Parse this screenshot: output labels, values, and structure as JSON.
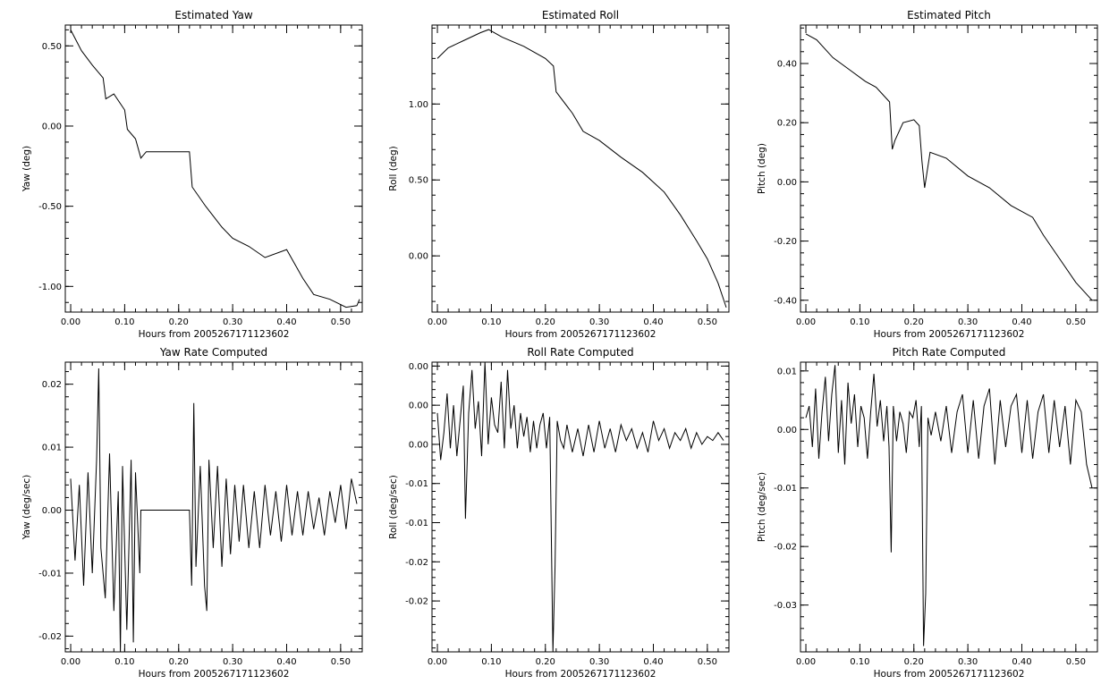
{
  "colors": {
    "background": "#ffffff",
    "ink": "#000000"
  },
  "chart_data": [
    {
      "id": "yaw",
      "type": "line",
      "title": "Estimated Yaw",
      "xlabel": "Hours from 2005267171123602",
      "ylabel": "Yaw (deg)",
      "xlim": [
        -0.01,
        0.54
      ],
      "ylim": [
        -1.16,
        0.63
      ],
      "xticks": [
        0.0,
        0.1,
        0.2,
        0.3,
        0.4,
        0.5
      ],
      "xtick_labels": [
        "0.00",
        "0.10",
        "0.20",
        "0.30",
        "0.40",
        "0.50"
      ],
      "yticks": [
        0.5,
        0.0,
        -0.5,
        -1.0
      ],
      "ytick_labels": [
        "0.50",
        "0.00",
        "-0.50",
        "-1.00"
      ],
      "grid": false,
      "legend": "none",
      "series": [
        {
          "x": [
            0.0,
            0.02,
            0.04,
            0.06,
            0.065,
            0.08,
            0.1,
            0.105,
            0.12,
            0.13,
            0.14,
            0.22,
            0.225,
            0.25,
            0.28,
            0.3,
            0.33,
            0.36,
            0.4,
            0.43,
            0.45,
            0.48,
            0.51,
            0.53,
            0.535
          ],
          "y": [
            0.6,
            0.47,
            0.38,
            0.3,
            0.17,
            0.2,
            0.1,
            -0.02,
            -0.08,
            -0.2,
            -0.16,
            -0.16,
            -0.38,
            -0.5,
            -0.63,
            -0.7,
            -0.75,
            -0.82,
            -0.77,
            -0.95,
            -1.05,
            -1.08,
            -1.13,
            -1.12,
            -1.08
          ]
        }
      ]
    },
    {
      "id": "roll",
      "type": "line",
      "title": "Estimated Roll",
      "xlabel": "Hours from 2005267171123602",
      "ylabel": "Roll (deg)",
      "xlim": [
        -0.01,
        0.54
      ],
      "ylim": [
        -0.37,
        1.52
      ],
      "xticks": [
        0.0,
        0.1,
        0.2,
        0.3,
        0.4,
        0.5
      ],
      "xtick_labels": [
        "0.00",
        "0.10",
        "0.20",
        "0.30",
        "0.40",
        "0.50"
      ],
      "yticks": [
        1.0,
        0.5,
        0.0
      ],
      "ytick_labels": [
        "1.00",
        "0.50",
        "0.00"
      ],
      "grid": false,
      "legend": "none",
      "series": [
        {
          "x": [
            0.0,
            0.02,
            0.05,
            0.08,
            0.095,
            0.12,
            0.16,
            0.2,
            0.215,
            0.22,
            0.25,
            0.27,
            0.3,
            0.34,
            0.38,
            0.42,
            0.45,
            0.48,
            0.5,
            0.52,
            0.535
          ],
          "y": [
            1.3,
            1.37,
            1.42,
            1.47,
            1.49,
            1.44,
            1.38,
            1.3,
            1.25,
            1.08,
            0.94,
            0.82,
            0.76,
            0.65,
            0.55,
            0.42,
            0.27,
            0.1,
            -0.02,
            -0.18,
            -0.34
          ]
        }
      ]
    },
    {
      "id": "pitch",
      "type": "line",
      "title": "Estimated Pitch",
      "xlabel": "Hours from 2005267171123602",
      "ylabel": "Pitch (deg)",
      "xlim": [
        -0.01,
        0.54
      ],
      "ylim": [
        -0.44,
        0.53
      ],
      "xticks": [
        0.0,
        0.1,
        0.2,
        0.3,
        0.4,
        0.5
      ],
      "xtick_labels": [
        "0.00",
        "0.10",
        "0.20",
        "0.30",
        "0.40",
        "0.50"
      ],
      "yticks": [
        0.4,
        0.2,
        0.0,
        -0.2,
        -0.4
      ],
      "ytick_labels": [
        "0.40",
        "0.20",
        "0.00",
        "-0.20",
        "-0.40"
      ],
      "grid": false,
      "legend": "none",
      "series": [
        {
          "x": [
            0.0,
            0.02,
            0.05,
            0.08,
            0.11,
            0.13,
            0.155,
            0.16,
            0.165,
            0.18,
            0.2,
            0.21,
            0.215,
            0.22,
            0.23,
            0.26,
            0.3,
            0.34,
            0.38,
            0.42,
            0.43,
            0.44,
            0.47,
            0.5,
            0.53
          ],
          "y": [
            0.5,
            0.48,
            0.42,
            0.38,
            0.34,
            0.32,
            0.27,
            0.11,
            0.14,
            0.2,
            0.21,
            0.19,
            0.07,
            -0.02,
            0.1,
            0.08,
            0.02,
            -0.02,
            -0.08,
            -0.12,
            -0.15,
            -0.18,
            -0.26,
            -0.34,
            -0.4
          ]
        }
      ]
    },
    {
      "id": "yaw-rate",
      "type": "line",
      "title": "Yaw Rate Computed",
      "xlabel": "Hours from 2005267171123602",
      "ylabel": "Yaw (deg/sec)",
      "xlim": [
        -0.01,
        0.54
      ],
      "ylim": [
        -0.0225,
        0.0235
      ],
      "xticks": [
        0.0,
        0.1,
        0.2,
        0.3,
        0.4,
        0.5
      ],
      "xtick_labels": [
        "0.00",
        "0.10",
        "0.20",
        "0.30",
        "0.40",
        "0.50"
      ],
      "yticks": [
        0.02,
        0.01,
        0.0,
        -0.01,
        -0.02
      ],
      "ytick_labels": [
        "0.02",
        "0.01",
        "0.00",
        "-0.01",
        "-0.02"
      ],
      "grid": false,
      "legend": "none",
      "series": [
        {
          "x": [
            0.0,
            0.008,
            0.016,
            0.024,
            0.032,
            0.04,
            0.048,
            0.052,
            0.056,
            0.064,
            0.072,
            0.08,
            0.088,
            0.092,
            0.096,
            0.104,
            0.112,
            0.116,
            0.12,
            0.128,
            0.13,
            0.22,
            0.224,
            0.228,
            0.232,
            0.24,
            0.248,
            0.252,
            0.256,
            0.264,
            0.272,
            0.28,
            0.288,
            0.296,
            0.304,
            0.312,
            0.32,
            0.33,
            0.34,
            0.35,
            0.36,
            0.37,
            0.38,
            0.39,
            0.4,
            0.41,
            0.42,
            0.43,
            0.44,
            0.45,
            0.46,
            0.47,
            0.48,
            0.49,
            0.5,
            0.51,
            0.52,
            0.53
          ],
          "y": [
            0.005,
            -0.008,
            0.004,
            -0.012,
            0.006,
            -0.01,
            0.008,
            0.0225,
            -0.006,
            -0.014,
            0.009,
            -0.016,
            0.003,
            -0.0225,
            0.007,
            -0.019,
            0.008,
            -0.021,
            0.006,
            -0.01,
            0.0,
            0.0,
            -0.012,
            0.017,
            -0.009,
            0.007,
            -0.012,
            -0.016,
            0.008,
            -0.006,
            0.007,
            -0.009,
            0.005,
            -0.007,
            0.004,
            -0.005,
            0.004,
            -0.006,
            0.003,
            -0.006,
            0.004,
            -0.004,
            0.003,
            -0.005,
            0.004,
            -0.004,
            0.003,
            -0.004,
            0.003,
            -0.003,
            0.002,
            -0.004,
            0.003,
            -0.002,
            0.004,
            -0.003,
            0.005,
            0.001
          ]
        }
      ]
    },
    {
      "id": "roll-rate",
      "type": "line",
      "title": "Roll Rate Computed",
      "xlabel": "Hours from 2005267171123602",
      "ylabel": "Roll (deg/sec)",
      "xlim": [
        -0.01,
        0.54
      ],
      "ylim": [
        -0.0265,
        0.0105
      ],
      "xticks": [
        0.0,
        0.1,
        0.2,
        0.3,
        0.4,
        0.5
      ],
      "xtick_labels": [
        "0.00",
        "0.10",
        "0.20",
        "0.30",
        "0.40",
        "0.50"
      ],
      "yticks": [
        0.01,
        0.005,
        0.0,
        -0.005,
        -0.01,
        -0.015,
        -0.02
      ],
      "ytick_labels": [
        "0.00",
        "0.00",
        "0.00",
        "-0.01",
        "-0.01",
        "-0.02",
        "-0.02"
      ],
      "grid": false,
      "legend": "none",
      "series": [
        {
          "x": [
            0.0,
            0.006,
            0.012,
            0.018,
            0.024,
            0.03,
            0.036,
            0.042,
            0.048,
            0.052,
            0.058,
            0.064,
            0.07,
            0.076,
            0.082,
            0.088,
            0.094,
            0.1,
            0.106,
            0.112,
            0.118,
            0.124,
            0.13,
            0.136,
            0.142,
            0.148,
            0.154,
            0.16,
            0.166,
            0.172,
            0.178,
            0.184,
            0.19,
            0.196,
            0.202,
            0.208,
            0.214,
            0.218,
            0.222,
            0.228,
            0.234,
            0.24,
            0.25,
            0.26,
            0.27,
            0.28,
            0.29,
            0.3,
            0.31,
            0.32,
            0.33,
            0.34,
            0.35,
            0.36,
            0.37,
            0.38,
            0.39,
            0.4,
            0.41,
            0.42,
            0.43,
            0.44,
            0.45,
            0.46,
            0.47,
            0.48,
            0.49,
            0.5,
            0.51,
            0.52,
            0.53
          ],
          "y": [
            0.004,
            -0.002,
            0.0015,
            0.0065,
            -0.0005,
            0.005,
            -0.0015,
            0.003,
            0.0075,
            -0.0095,
            0.004,
            0.0095,
            0.002,
            0.0055,
            -0.0015,
            0.0105,
            0.0,
            0.006,
            0.0025,
            0.0015,
            0.008,
            -0.0005,
            0.0095,
            0.002,
            0.005,
            -0.0005,
            0.004,
            0.001,
            0.0035,
            -0.001,
            0.003,
            -0.0005,
            0.0025,
            0.004,
            -0.0005,
            0.0035,
            -0.0265,
            -0.0155,
            0.003,
            0.0005,
            -0.0005,
            0.0025,
            -0.001,
            0.002,
            -0.0015,
            0.0025,
            -0.001,
            0.003,
            -0.0005,
            0.002,
            -0.001,
            0.0025,
            0.0005,
            0.002,
            -0.0005,
            0.0015,
            -0.001,
            0.003,
            0.0005,
            0.002,
            -0.0005,
            0.0015,
            0.0005,
            0.002,
            -0.0005,
            0.0015,
            0.0,
            0.001,
            0.0005,
            0.0015,
            0.0005
          ]
        }
      ]
    },
    {
      "id": "pitch-rate",
      "type": "line",
      "title": "Pitch Rate Computed",
      "xlabel": "Hours from 2005267171123602",
      "ylabel": "Pitch (deg/sec)",
      "xlim": [
        -0.01,
        0.54
      ],
      "ylim": [
        -0.038,
        0.0115
      ],
      "xticks": [
        0.0,
        0.1,
        0.2,
        0.3,
        0.4,
        0.5
      ],
      "xtick_labels": [
        "0.00",
        "0.10",
        "0.20",
        "0.30",
        "0.40",
        "0.50"
      ],
      "yticks": [
        0.01,
        0.0,
        -0.01,
        -0.02,
        -0.03
      ],
      "ytick_labels": [
        "0.01",
        "0.00",
        "-0.01",
        "-0.02",
        "-0.03"
      ],
      "grid": false,
      "legend": "none",
      "series": [
        {
          "x": [
            0.0,
            0.006,
            0.012,
            0.018,
            0.024,
            0.03,
            0.036,
            0.042,
            0.048,
            0.054,
            0.06,
            0.066,
            0.072,
            0.078,
            0.084,
            0.09,
            0.096,
            0.102,
            0.108,
            0.114,
            0.12,
            0.126,
            0.132,
            0.138,
            0.144,
            0.15,
            0.154,
            0.158,
            0.162,
            0.168,
            0.174,
            0.18,
            0.186,
            0.192,
            0.198,
            0.204,
            0.21,
            0.214,
            0.218,
            0.222,
            0.226,
            0.232,
            0.24,
            0.25,
            0.26,
            0.27,
            0.28,
            0.29,
            0.3,
            0.31,
            0.32,
            0.33,
            0.34,
            0.35,
            0.36,
            0.37,
            0.38,
            0.39,
            0.4,
            0.41,
            0.42,
            0.43,
            0.44,
            0.45,
            0.46,
            0.47,
            0.48,
            0.49,
            0.5,
            0.51,
            0.52,
            0.53
          ],
          "y": [
            0.002,
            0.004,
            -0.003,
            0.007,
            -0.005,
            0.003,
            0.009,
            -0.002,
            0.006,
            0.011,
            -0.004,
            0.005,
            -0.006,
            0.008,
            0.001,
            0.006,
            -0.003,
            0.004,
            0.002,
            -0.005,
            0.003,
            0.0095,
            0.0005,
            0.005,
            -0.002,
            0.004,
            -0.003,
            -0.021,
            0.004,
            -0.002,
            0.003,
            0.001,
            -0.004,
            0.003,
            0.002,
            0.005,
            -0.003,
            0.004,
            -0.037,
            -0.028,
            0.002,
            -0.001,
            0.003,
            -0.002,
            0.004,
            -0.004,
            0.003,
            0.006,
            -0.004,
            0.005,
            -0.005,
            0.004,
            0.007,
            -0.006,
            0.005,
            -0.003,
            0.004,
            0.006,
            -0.004,
            0.005,
            -0.005,
            0.003,
            0.006,
            -0.004,
            0.005,
            -0.003,
            0.004,
            -0.006,
            0.005,
            0.003,
            -0.006,
            -0.01
          ]
        }
      ]
    }
  ]
}
